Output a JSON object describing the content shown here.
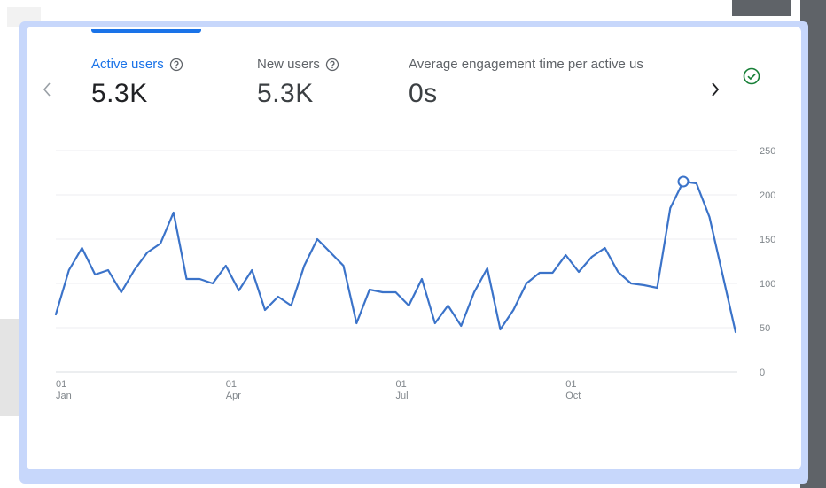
{
  "tabs": [
    {
      "label": "Active users",
      "value": "5.3K",
      "active": true
    },
    {
      "label": "New users",
      "value": "5.3K",
      "active": false
    },
    {
      "label": "Average engagement time per active us",
      "value": "0s",
      "active": false
    }
  ],
  "icons": {
    "help": "help-circle-icon",
    "prev": "chevron-left-icon",
    "next": "chevron-right-icon",
    "status": "check-circle-icon"
  },
  "colors": {
    "accent": "#1a73e8",
    "line": "#3b73c9",
    "status": "#188038",
    "frame": "#c7d7fb"
  },
  "chart_data": {
    "type": "line",
    "title": "",
    "xlabel": "",
    "ylabel": "",
    "ylim": [
      0,
      250
    ],
    "y_ticks": [
      "250",
      "200",
      "150",
      "100",
      "50",
      "0"
    ],
    "y_tick_values": [
      250,
      200,
      150,
      100,
      50,
      0
    ],
    "x_ticks": [
      {
        "day": "01",
        "month": "Jan",
        "week": 0
      },
      {
        "day": "01",
        "month": "Apr",
        "week": 13
      },
      {
        "day": "01",
        "month": "Jul",
        "week": 26
      },
      {
        "day": "01",
        "month": "Oct",
        "week": 39
      }
    ],
    "grid": true,
    "series": [
      {
        "values": [
          65,
          115,
          140,
          110,
          115,
          90,
          115,
          135,
          145,
          180,
          105,
          105,
          100,
          120,
          92,
          115,
          70,
          85,
          75,
          120,
          150,
          135,
          120,
          55,
          93,
          90,
          90,
          75,
          105,
          55,
          75,
          52,
          90,
          117,
          48,
          70,
          100,
          112,
          112,
          132,
          113,
          130,
          140,
          113,
          100,
          98,
          95,
          185,
          215,
          213,
          175,
          110,
          45
        ],
        "highlight_index": 48,
        "highlight_value": 215
      }
    ]
  }
}
